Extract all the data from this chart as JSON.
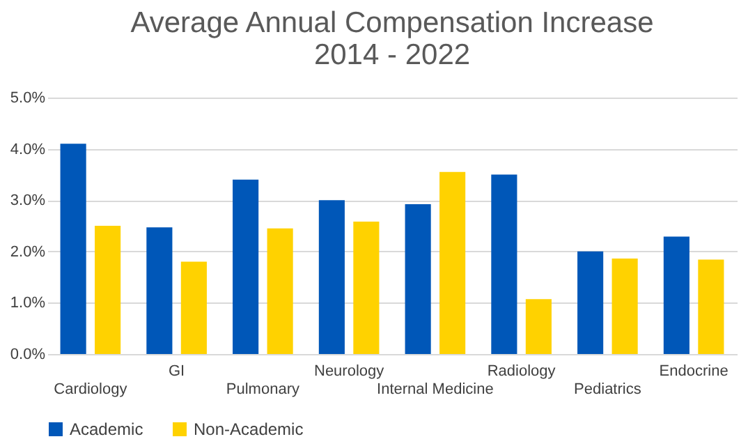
{
  "chart_data": {
    "type": "bar",
    "title": "Average Annual Compensation Increase",
    "subtitle": "2014 - 2022",
    "categories": [
      "Cardiology",
      "GI",
      "Pulmonary",
      "Neurology",
      "Internal Medicine",
      "Radiology",
      "Pediatrics",
      "Endocrine"
    ],
    "series": [
      {
        "name": "Academic",
        "color": "#0057b8",
        "values": [
          4.1,
          2.47,
          3.4,
          3.0,
          2.92,
          3.5,
          2.0,
          2.29
        ]
      },
      {
        "name": "Non-Academic",
        "color": "#ffd200",
        "values": [
          2.5,
          1.8,
          2.45,
          2.58,
          3.55,
          1.07,
          1.86,
          1.84
        ]
      }
    ],
    "ylim": [
      0,
      5
    ],
    "yticks": [
      {
        "value": 0,
        "label": "0.0%"
      },
      {
        "value": 1,
        "label": "1.0%"
      },
      {
        "value": 2,
        "label": "2.0%"
      },
      {
        "value": 3,
        "label": "3.0%"
      },
      {
        "value": 4,
        "label": "4.0%"
      },
      {
        "value": 5,
        "label": "5.0%"
      }
    ],
    "grid": "y",
    "legend": "bottom"
  }
}
